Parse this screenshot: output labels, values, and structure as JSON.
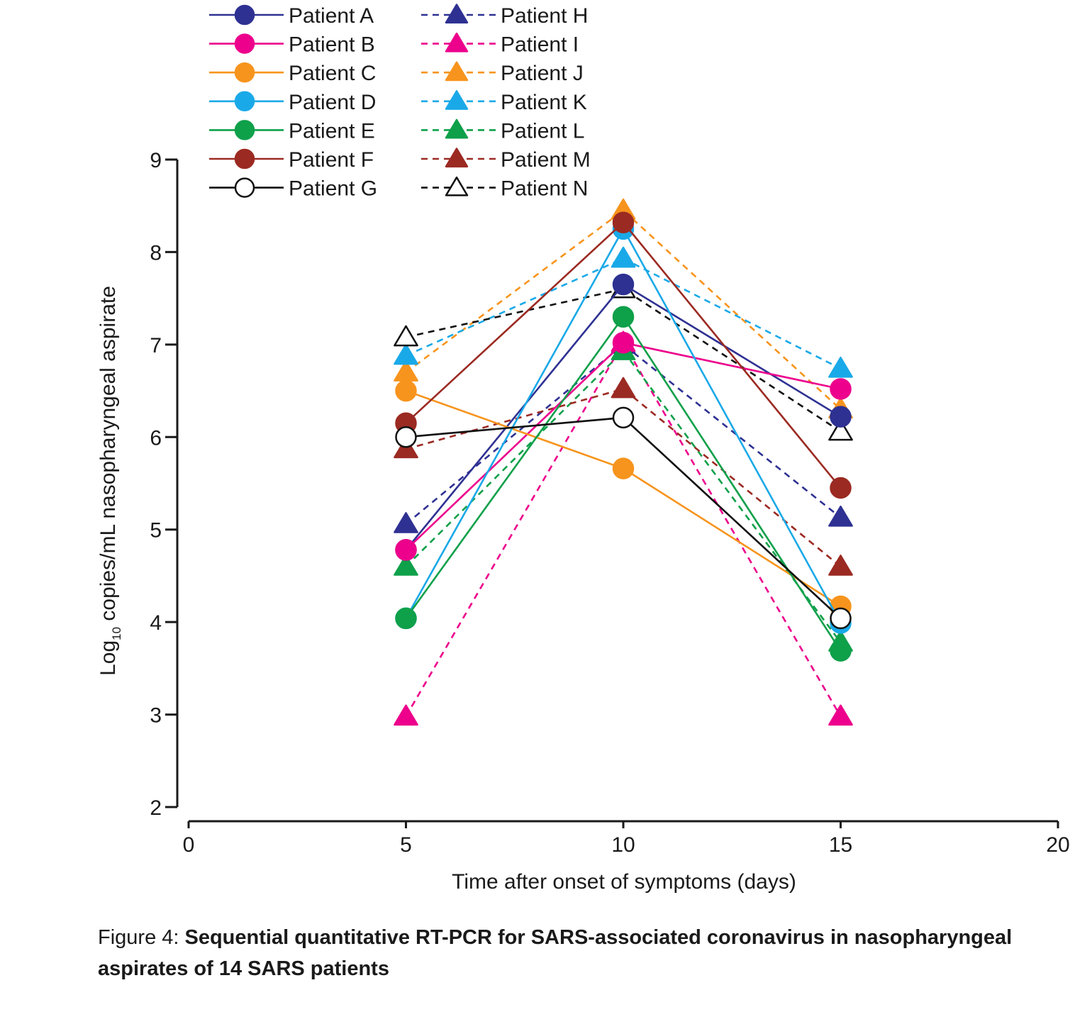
{
  "chart_data": {
    "type": "line",
    "title": "",
    "xlabel": "Time after onset of symptoms (days)",
    "ylabel_main": "Log",
    "ylabel_sub": "10",
    "ylabel_rest": " copies/mL nasopharyngeal aspirate",
    "xlim": [
      0,
      20
    ],
    "ylim": [
      2,
      9
    ],
    "x_ticks": [
      "0",
      "5",
      "10",
      "15",
      "20"
    ],
    "y_ticks": [
      "2",
      "3",
      "4",
      "5",
      "6",
      "7",
      "8",
      "9"
    ],
    "legend_position": "top",
    "series": [
      {
        "name": "Patient A",
        "color": "#2e3192",
        "marker": "circle",
        "dash": false,
        "filled": true,
        "x": [
          5,
          10,
          15
        ],
        "y": [
          4.78,
          7.65,
          6.22
        ]
      },
      {
        "name": "Patient B",
        "color": "#ec008c",
        "marker": "circle",
        "dash": false,
        "filled": true,
        "x": [
          5,
          10,
          15
        ],
        "y": [
          4.78,
          7.02,
          6.52
        ]
      },
      {
        "name": "Patient C",
        "color": "#f7941d",
        "marker": "circle",
        "dash": false,
        "filled": true,
        "x": [
          5,
          10,
          15
        ],
        "y": [
          6.5,
          5.66,
          4.17
        ]
      },
      {
        "name": "Patient D",
        "color": "#1aa9e8",
        "marker": "circle",
        "dash": false,
        "filled": true,
        "x": [
          5,
          10,
          15
        ],
        "y": [
          4.04,
          8.25,
          3.99
        ]
      },
      {
        "name": "Patient E",
        "color": "#0fa04a",
        "marker": "circle",
        "dash": false,
        "filled": true,
        "x": [
          5,
          10,
          15
        ],
        "y": [
          4.04,
          7.3,
          3.69
        ]
      },
      {
        "name": "Patient F",
        "color": "#9b2a22",
        "marker": "circle",
        "dash": false,
        "filled": true,
        "x": [
          5,
          10,
          15
        ],
        "y": [
          6.15,
          8.32,
          5.45
        ]
      },
      {
        "name": "Patient G",
        "color": "#111111",
        "marker": "circle",
        "dash": false,
        "filled": false,
        "x": [
          5,
          10,
          15
        ],
        "y": [
          6.0,
          6.21,
          4.04
        ]
      },
      {
        "name": "Patient H",
        "color": "#2e3192",
        "marker": "triangle",
        "dash": true,
        "filled": true,
        "x": [
          5,
          10,
          15
        ],
        "y": [
          5.06,
          7.0,
          5.13
        ]
      },
      {
        "name": "Patient I",
        "color": "#ec008c",
        "marker": "triangle",
        "dash": true,
        "filled": true,
        "x": [
          5,
          10,
          15
        ],
        "y": [
          2.98,
          7.02,
          2.98
        ]
      },
      {
        "name": "Patient J",
        "color": "#f7941d",
        "marker": "triangle",
        "dash": true,
        "filled": true,
        "x": [
          5,
          10,
          15
        ],
        "y": [
          6.7,
          8.45,
          6.3
        ]
      },
      {
        "name": "Patient K",
        "color": "#1aa9e8",
        "marker": "triangle",
        "dash": true,
        "filled": true,
        "x": [
          5,
          10,
          15
        ],
        "y": [
          6.88,
          7.93,
          6.74
        ]
      },
      {
        "name": "Patient L",
        "color": "#0fa04a",
        "marker": "triangle",
        "dash": true,
        "filled": true,
        "x": [
          5,
          10,
          15
        ],
        "y": [
          4.6,
          6.93,
          3.78
        ]
      },
      {
        "name": "Patient M",
        "color": "#9b2a22",
        "marker": "triangle",
        "dash": true,
        "filled": true,
        "x": [
          5,
          10,
          15
        ],
        "y": [
          5.87,
          6.52,
          4.6
        ]
      },
      {
        "name": "Patient N",
        "color": "#111111",
        "marker": "triangle",
        "dash": true,
        "filled": false,
        "x": [
          5,
          10,
          15
        ],
        "y": [
          7.08,
          7.6,
          6.06
        ]
      }
    ]
  },
  "caption": {
    "lead": "Figure 4: ",
    "text": "Sequential quantitative RT-PCR for SARS-associated coronavirus in nasopharyngeal aspirates of 14 SARS patients"
  }
}
